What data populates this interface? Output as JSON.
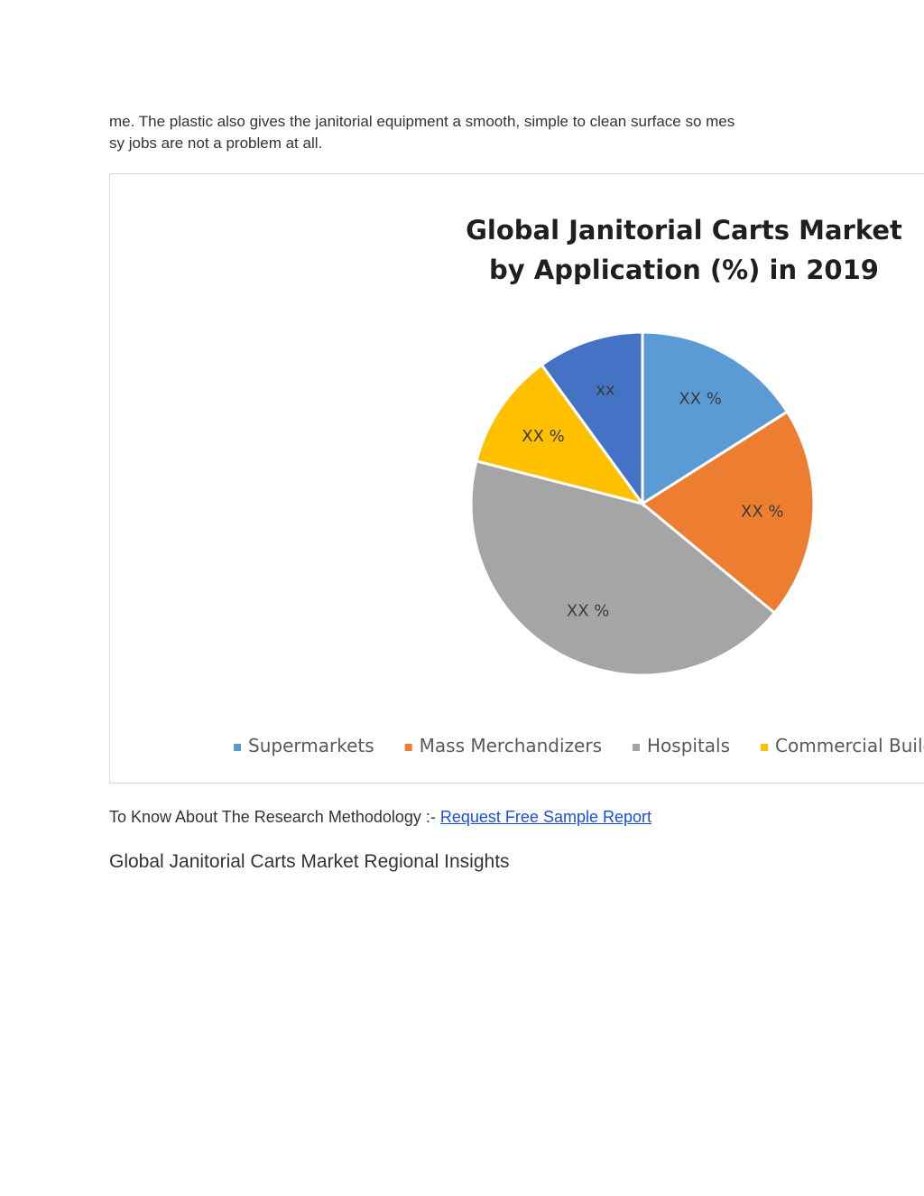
{
  "intro": {
    "line1": "me. The plastic also gives the janitorial equipment a smooth, simple to clean surface so mes",
    "line2": "sy jobs are not a problem at all."
  },
  "chart_data": {
    "type": "pie",
    "title_line1": "Global Janitorial Carts Market",
    "title_line2": "by Application (%) in 2019",
    "slices": [
      {
        "name": "Supermarkets",
        "value": 16,
        "label": "XX %",
        "color": "#5B9BD5"
      },
      {
        "name": "Mass Merchandizers",
        "value": 20,
        "label": "XX %",
        "color": "#ED7D31"
      },
      {
        "name": "Hospitals",
        "value": 43,
        "label": "XX %",
        "color": "#A5A5A5"
      },
      {
        "name": "Commercial Buildi",
        "value": 11,
        "label": "XX %",
        "color": "#FFC000"
      },
      {
        "name": "",
        "value": 10,
        "label": "xx",
        "color": "#4472C4"
      }
    ],
    "legend_placement": "bottom",
    "start_angle_deg": 0
  },
  "methodology": {
    "prefix": "To Know About The Research Methodology :- ",
    "link_text": "Request Free Sample Report"
  },
  "regional_heading": "Global Janitorial Carts Market Regional Insights"
}
